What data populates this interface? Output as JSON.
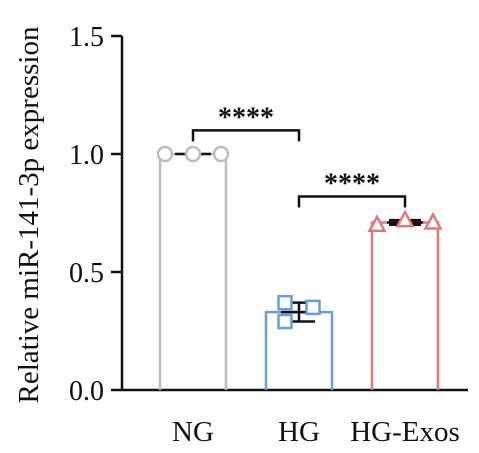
{
  "chart_data": {
    "type": "bar",
    "ylabel": "Relative miR-141-3p expression",
    "xlabel": "",
    "ylim": [
      0,
      1.5
    ],
    "yticks": [
      "0.0",
      "0.5",
      "1.0",
      "1.5"
    ],
    "categories": [
      "NG",
      "HG",
      "HG-Exos"
    ],
    "colors": [
      "#bdbdbd",
      "#6a9fd4",
      "#e07a7a"
    ],
    "marker_shapes": [
      "circle",
      "square",
      "triangle"
    ],
    "values": [
      1.0,
      0.33,
      0.71
    ],
    "error": [
      0.0,
      0.04,
      0.01
    ],
    "points": [
      [
        1.0,
        1.0,
        1.0
      ],
      [
        0.37,
        0.35,
        0.29
      ],
      [
        0.7,
        0.72,
        0.71
      ]
    ],
    "significance": [
      {
        "from": "NG",
        "to": "HG",
        "label": "****",
        "y": 1.1
      },
      {
        "from": "HG",
        "to": "HG-Exos",
        "label": "****",
        "y": 0.82
      }
    ]
  }
}
